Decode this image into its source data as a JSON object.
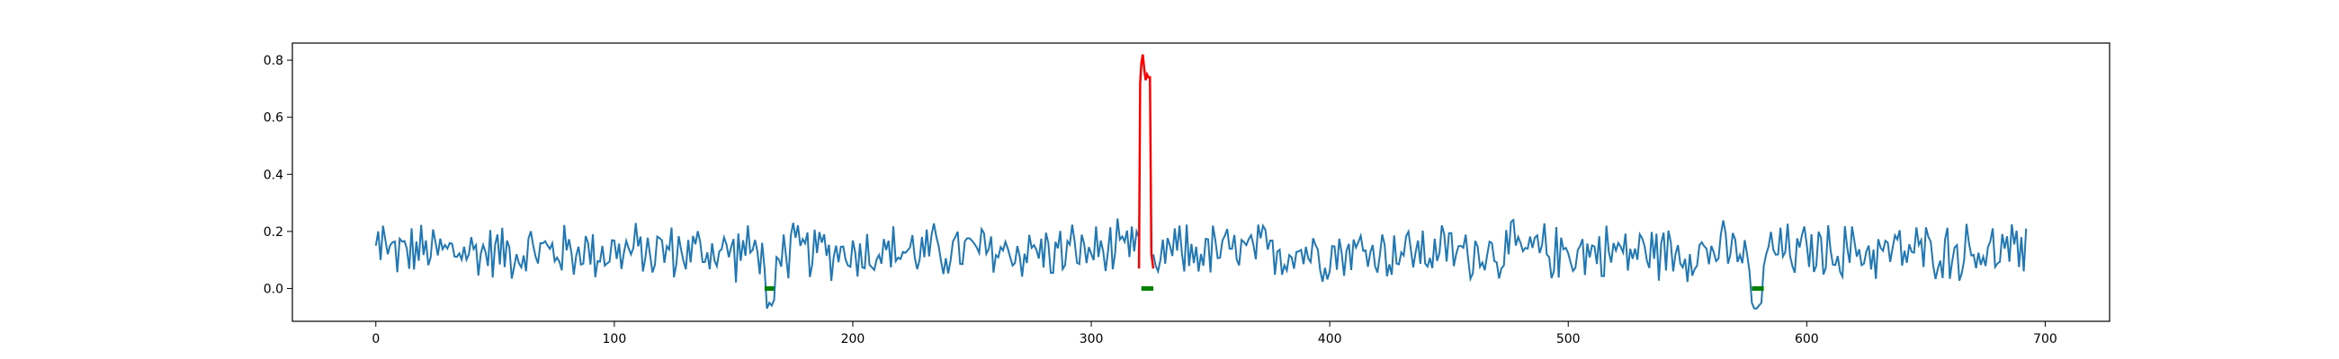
{
  "chart_data": {
    "type": "line",
    "title": "",
    "xlabel": "",
    "ylabel": "",
    "xlim": [
      -35,
      727
    ],
    "ylim": [
      -0.115,
      0.86
    ],
    "xticks": [
      0,
      100,
      200,
      300,
      400,
      500,
      600,
      700
    ],
    "yticks": [
      0.0,
      0.2,
      0.4,
      0.6,
      0.8
    ],
    "grid": false,
    "legend": "none",
    "noise": {
      "x_range": [
        0,
        692
      ],
      "base": 0.13,
      "amplitude": 0.12
    },
    "series": [
      {
        "color": "#1f77b4",
        "description_points": [
          [
            0,
            0.15
          ],
          [
            1,
            0.2
          ],
          [
            2,
            0.1
          ],
          [
            3,
            0.22
          ],
          [
            4,
            0.17
          ],
          [
            5,
            0.12
          ],
          [
            160,
            0.13
          ],
          [
            161,
            0.05
          ],
          [
            162,
            0.16
          ],
          [
            163,
            0.07
          ],
          [
            164,
            -0.07
          ],
          [
            165,
            -0.05
          ],
          [
            166,
            -0.06
          ],
          [
            167,
            -0.04
          ],
          [
            168,
            0.11
          ],
          [
            318,
            0.13
          ],
          [
            319,
            0.2
          ],
          [
            320,
            0.18
          ],
          [
            326,
            0.12
          ],
          [
            327,
            0.08
          ],
          [
            328,
            0.06
          ],
          [
            329,
            0.1
          ],
          [
            575,
            0.12
          ],
          [
            576,
            0.06
          ],
          [
            577,
            -0.05
          ],
          [
            578,
            -0.07
          ],
          [
            579,
            -0.07
          ],
          [
            580,
            -0.06
          ],
          [
            581,
            -0.05
          ],
          [
            582,
            0.08
          ],
          [
            583,
            0.12
          ],
          [
            690,
            0.18
          ],
          [
            691,
            0.06
          ],
          [
            692,
            0.21
          ]
        ]
      },
      {
        "color": "#ff0000",
        "x": [
          320,
          320.5,
          321,
          321.6,
          322.2,
          322.8,
          323.4,
          324,
          324.6,
          325.2,
          326
        ],
        "y": [
          0.07,
          0.72,
          0.79,
          0.82,
          0.77,
          0.73,
          0.75,
          0.74,
          0.74,
          0.12,
          0.07
        ]
      },
      {
        "color": "#008000",
        "segments": [
          {
            "x": [
              163,
              167
            ],
            "y": 0.0
          },
          {
            "x": [
              321,
              326
            ],
            "y": 0.0
          },
          {
            "x": [
              577,
              582
            ],
            "y": 0.0
          }
        ]
      }
    ]
  }
}
